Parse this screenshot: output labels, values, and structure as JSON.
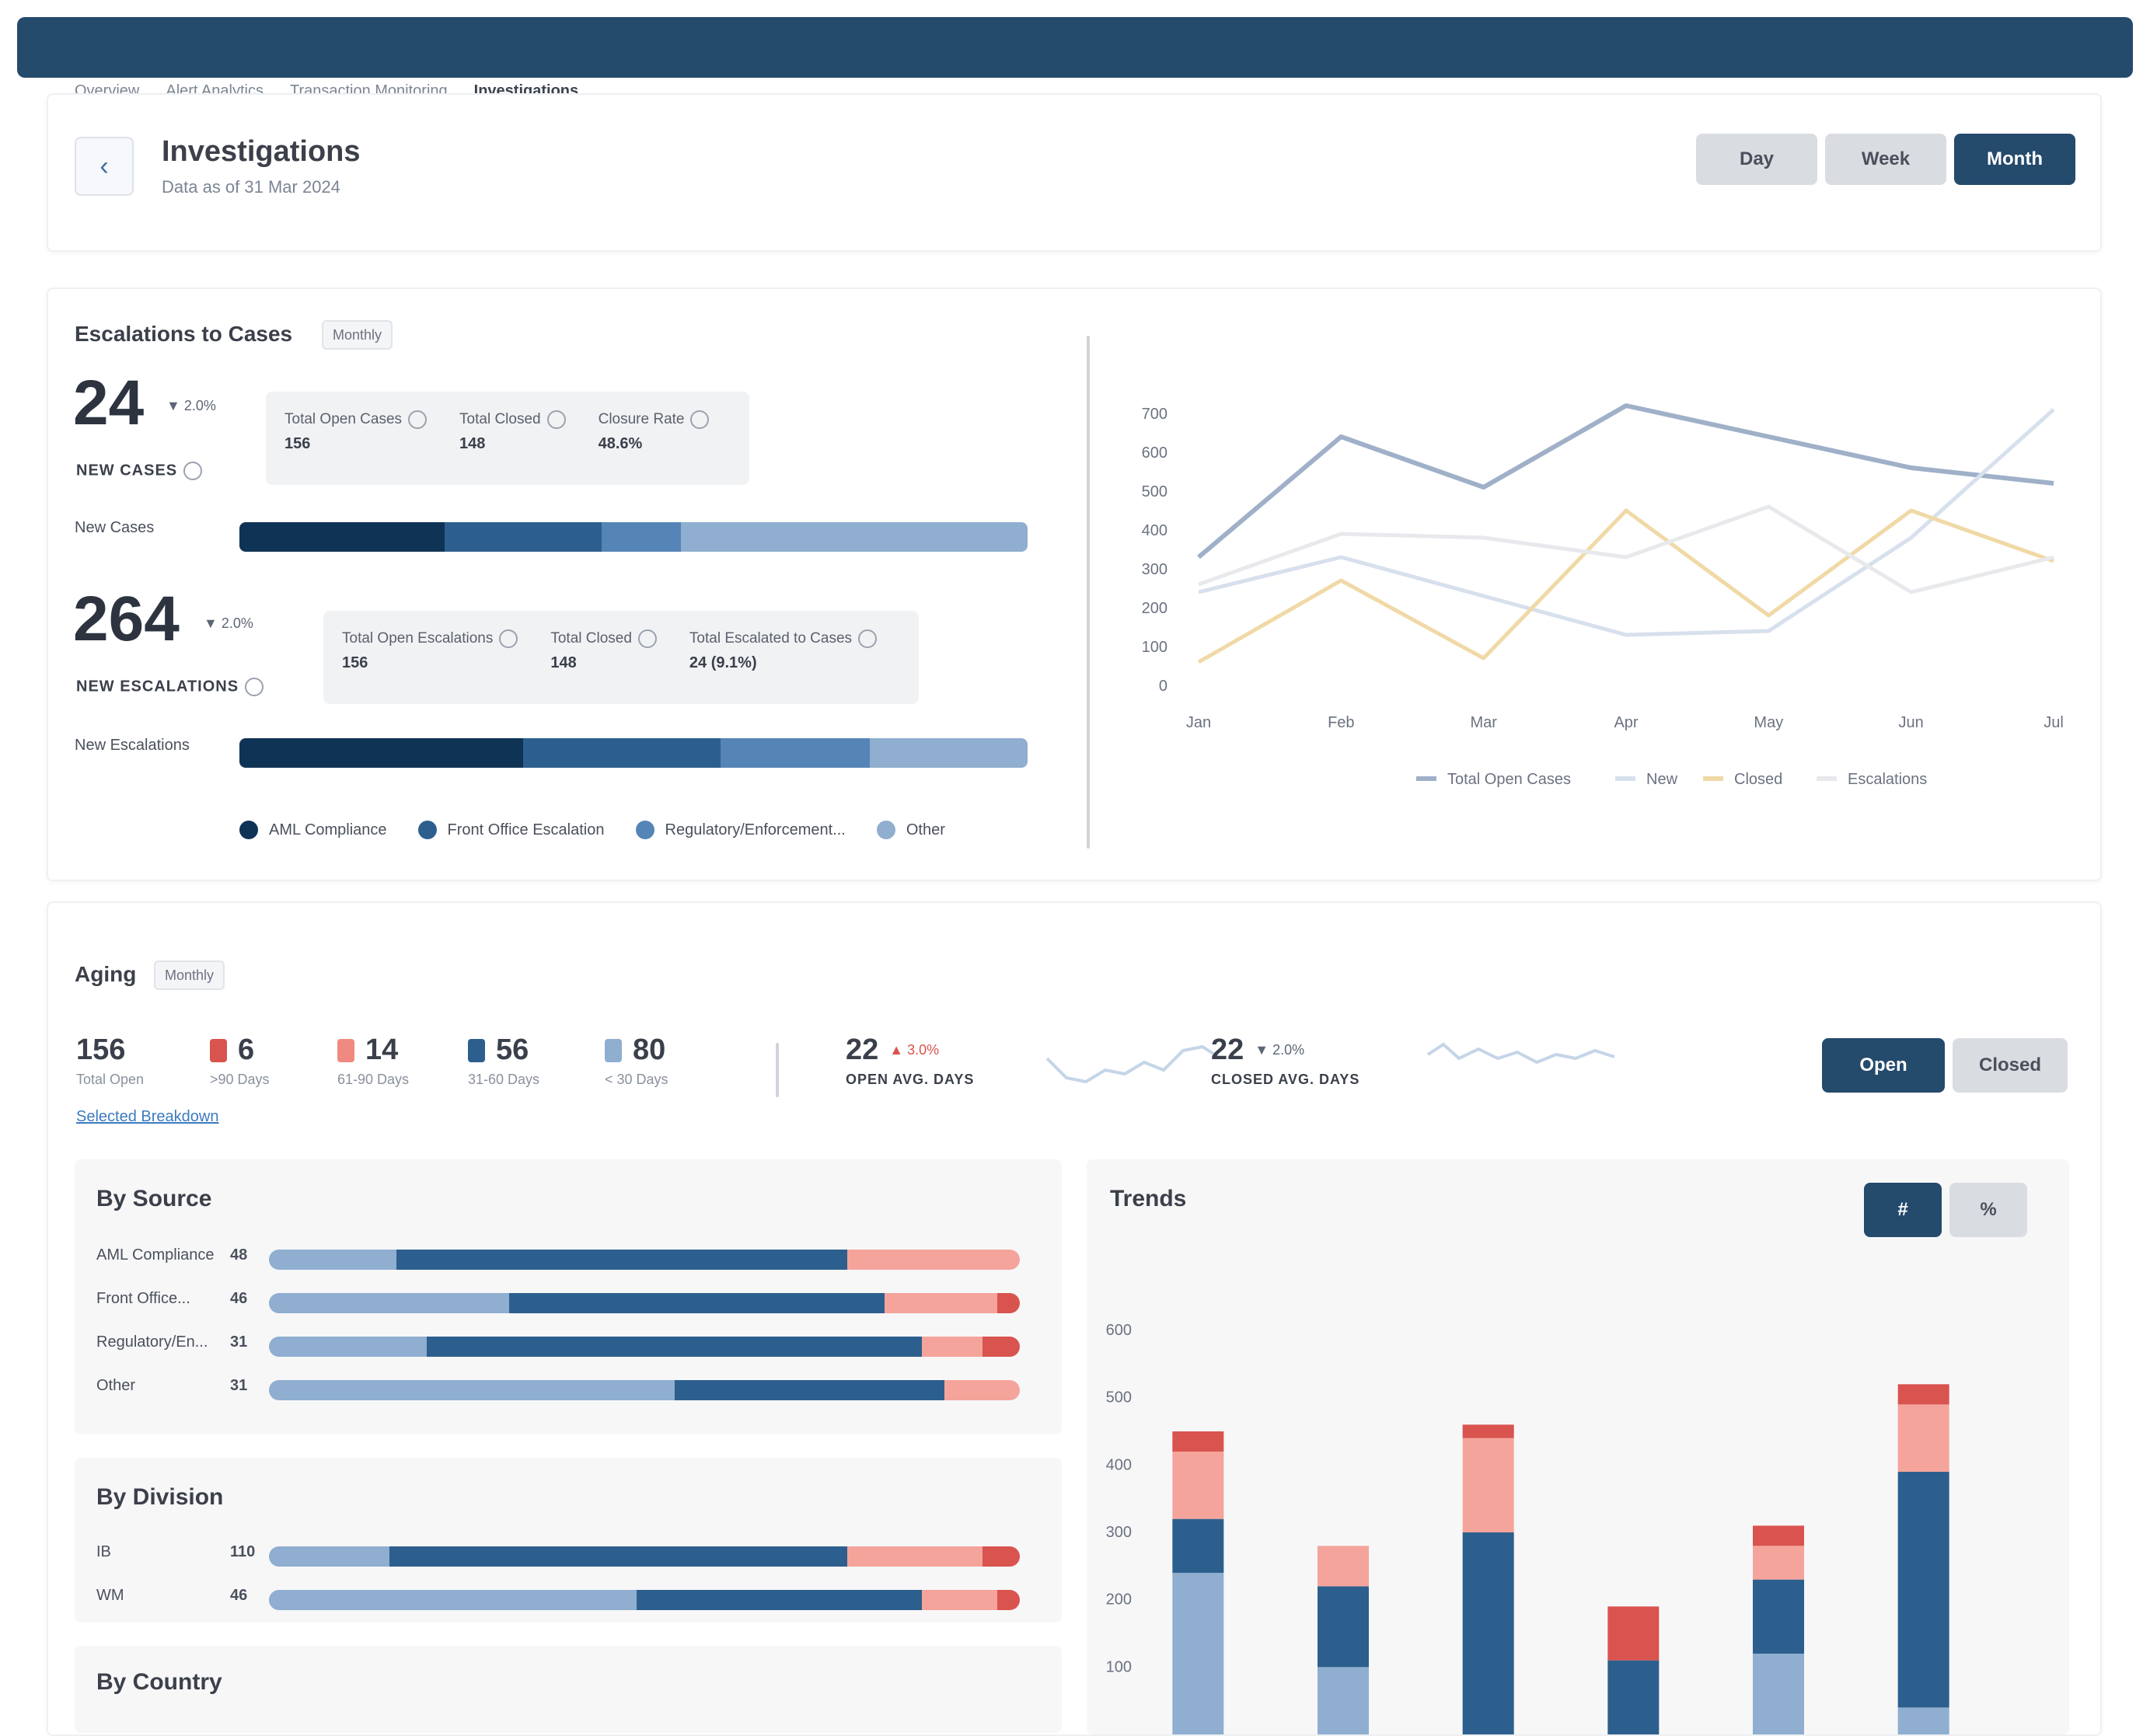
{
  "breadcrumb": [
    "Overview",
    "Alert Analytics",
    "Transaction Monitoring",
    "Investigations"
  ],
  "header": {
    "title": "Investigations",
    "subtitle": "Data as of 31 Mar 2024",
    "period_buttons": [
      "Day",
      "Week",
      "Month"
    ],
    "active_period": "Month"
  },
  "escalations": {
    "title": "Escalations to Cases",
    "chip": "Monthly",
    "new_cases": {
      "value": "24",
      "delta": "▼ 2.0%",
      "label": "NEW CASES",
      "stats": [
        {
          "label": "Total Open Cases",
          "value": "156"
        },
        {
          "label": "Total Closed",
          "value": "148"
        },
        {
          "label": "Closure Rate",
          "value": "48.6%"
        }
      ],
      "bar_label": "New Cases",
      "bar_segments": [
        0.26,
        0.2,
        0.1,
        0.44
      ]
    },
    "new_escalations": {
      "value": "264",
      "delta": "▼ 2.0%",
      "label": "NEW ESCALATIONS",
      "stats": [
        {
          "label": "Total Open Escalations",
          "value": "156"
        },
        {
          "label": "Total Closed",
          "value": "148"
        },
        {
          "label": "Total Escalated to Cases",
          "value": "24 (9.1%)"
        }
      ],
      "bar_label": "New Escalations",
      "bar_segments": [
        0.36,
        0.25,
        0.19,
        0.2
      ]
    },
    "legend": [
      {
        "name": "AML Compliance",
        "color": "#0f3355"
      },
      {
        "name": "Front Office Escalation",
        "color": "#2d5f8e"
      },
      {
        "name": "Regulatory/Enforcement...",
        "color": "#5584b6"
      },
      {
        "name": "Other",
        "color": "#8faed0"
      }
    ]
  },
  "aging": {
    "title": "Aging",
    "chip": "Monthly",
    "kpis": [
      {
        "value": "156",
        "caption": "Total Open",
        "color": ""
      },
      {
        "value": "6",
        "caption": ">90 Days",
        "color": "#d9534f"
      },
      {
        "value": "14",
        "caption": "61-90 Days",
        "color": "#f08a80"
      },
      {
        "value": "56",
        "caption": "31-60 Days",
        "color": "#2d5f8e"
      },
      {
        "value": "80",
        "caption": "< 30 Days",
        "color": "#8faed0"
      }
    ],
    "link": "Selected Breakdown",
    "avg_open": {
      "value": "22",
      "delta": "▲ 3.0%",
      "label": "OPEN AVG. DAYS"
    },
    "avg_closed": {
      "value": "22",
      "delta": "▼ 2.0%",
      "label": "CLOSED AVG. DAYS"
    },
    "toggle": [
      "Open",
      "Closed"
    ],
    "active_toggle": "Open",
    "by_source": {
      "title": "By Source",
      "rows": [
        {
          "label": "AML Compliance",
          "count": "48",
          "segments": [
            0.17,
            0.6,
            0.23,
            0.0
          ]
        },
        {
          "label": "Front Office...",
          "count": "46",
          "segments": [
            0.32,
            0.5,
            0.15,
            0.03
          ]
        },
        {
          "label": "Regulatory/En...",
          "count": "31",
          "segments": [
            0.21,
            0.66,
            0.08,
            0.05
          ]
        },
        {
          "label": "Other",
          "count": "31",
          "segments": [
            0.54,
            0.36,
            0.1,
            0.0
          ]
        }
      ]
    },
    "by_division": {
      "title": "By Division",
      "rows": [
        {
          "label": "IB",
          "count": "110",
          "segments": [
            0.16,
            0.61,
            0.18,
            0.05
          ]
        },
        {
          "label": "WM",
          "count": "46",
          "segments": [
            0.49,
            0.38,
            0.1,
            0.03
          ]
        }
      ]
    },
    "by_country": {
      "title": "By Country"
    },
    "trends": {
      "title": "Trends",
      "toggle": [
        "#",
        "%"
      ],
      "active_toggle": "#"
    }
  },
  "chart_data": [
    {
      "type": "line",
      "categories": [
        "Jan",
        "Feb",
        "Mar",
        "Apr",
        "May",
        "Jun",
        "Jul"
      ],
      "ylim": [
        0,
        700
      ],
      "yticks": [
        "0",
        "100",
        "200",
        "300",
        "400",
        "500",
        "600",
        "700"
      ],
      "series": [
        {
          "name": "Total Open Cases",
          "color": "#9fb0c8",
          "values": [
            330,
            640,
            510,
            720,
            640,
            560,
            520
          ]
        },
        {
          "name": "New",
          "color": "#d7e0ec",
          "values": [
            240,
            330,
            230,
            130,
            140,
            380,
            710
          ]
        },
        {
          "name": "Closed",
          "color": "#f0d9a6",
          "values": [
            60,
            270,
            70,
            450,
            180,
            450,
            320
          ]
        },
        {
          "name": "Escalations",
          "color": "#e7e9ec",
          "values": [
            260,
            390,
            380,
            330,
            460,
            240,
            330
          ]
        }
      ]
    },
    {
      "type": "bar",
      "categories": [
        "",
        "",
        "",
        "",
        "",
        ""
      ],
      "ylim": [
        0,
        600
      ],
      "yticks": [
        "100",
        "200",
        "300",
        "400",
        "500",
        "600"
      ],
      "series": [
        {
          "name": "< 30 Days",
          "color": "#8faed0",
          "values": [
            240,
            100,
            0,
            0,
            120,
            40
          ]
        },
        {
          "name": "31-60 Days",
          "color": "#2d5f8e",
          "values": [
            80,
            120,
            300,
            110,
            110,
            350
          ]
        },
        {
          "name": "61-90 Days",
          "color": "#f5a49b",
          "values": [
            100,
            60,
            140,
            0,
            50,
            100
          ]
        },
        {
          "name": ">90 Days",
          "color": "#d9534f",
          "values": [
            30,
            0,
            20,
            80,
            30,
            30
          ]
        }
      ]
    }
  ]
}
